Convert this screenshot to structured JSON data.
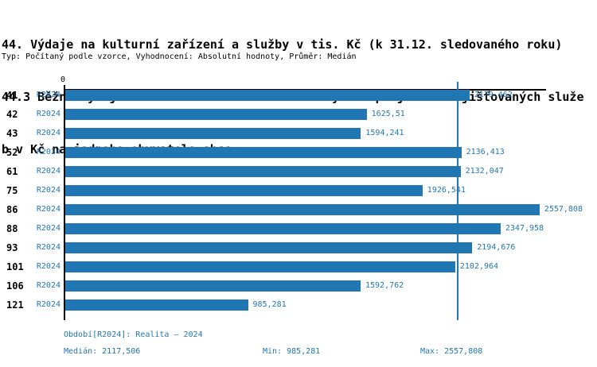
{
  "title_lines": [
    "44. Výdaje na kulturní zařízení a služby v tis. Kč (k 31.12. sledovaného roku)",
    "44.3 Běžné výdaje na kulturní zařízení a služby bez příjmů ze zajišťovaných služe",
    "b v Kč na jednoho obyvatele obce"
  ],
  "subtitle": "Typ: Počítaný podle vzorce, Vyhodnocení: Absolutní hodnoty, Průměr: Medián",
  "axis": {
    "zero_label": "0"
  },
  "chart_data": {
    "type": "bar",
    "orientation": "horizontal",
    "title": "44. Výdaje na kulturní zařízení a služby v tis. Kč (k 31.12. sledovaného roku) — 44.3 Běžné výdaje na kulturní zařízení a služby bez příjmů ze zajišťovaných služeb v Kč na jednoho obyvatele obce",
    "categories": [
      "41",
      "42",
      "43",
      "52",
      "61",
      "75",
      "86",
      "88",
      "93",
      "101",
      "106",
      "121"
    ],
    "series": [
      {
        "name": "R2024",
        "values": [
          2179.462,
          1625.51,
          1594.241,
          2136.413,
          2132.047,
          1926.541,
          2557.808,
          2347.958,
          2194.676,
          2102.964,
          1592.762,
          985.281
        ],
        "value_labels": [
          "2179,462",
          "1625,51",
          "1594,241",
          "2136,413",
          "2132,047",
          "1926,541",
          "2557,808",
          "2347,958",
          "2194,676",
          "2102,964",
          "1592,762",
          "985,281"
        ]
      }
    ],
    "xlim": [
      0,
      2593
    ],
    "median_line_value": 2117.506,
    "bar_color": "#2077b4",
    "median_line_color": "#2077b4",
    "grid": false,
    "legend_position": "none"
  },
  "footer": {
    "period": "Období[R2024]: Realita – 2024",
    "median": "Medián: 2117,506",
    "min": "Min: 985,281",
    "max": "Max: 2557,808"
  },
  "colors": {
    "bar": "#2077b4",
    "accent_text": "#2077b4",
    "title_text": "#000000"
  }
}
